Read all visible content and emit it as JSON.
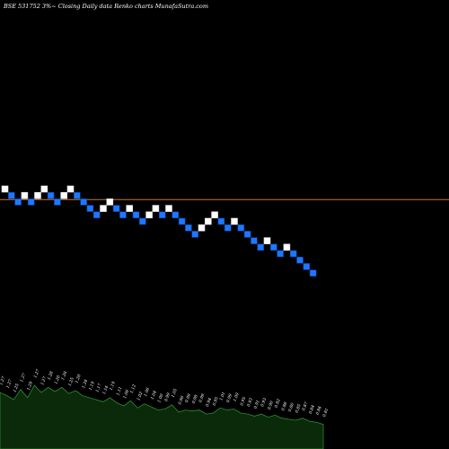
{
  "chart_data": {
    "type": "renko",
    "title": "BSE 531752  3%~  Closing Daily data  Renko  charts MunafaSutra.com",
    "reference_line_color": "#cc7733",
    "colors": {
      "up_brick": "#ffffff",
      "down_brick": "#1e78ff",
      "down_brick_border": "#0a3c9a",
      "volume_fill": "#0a2a0a",
      "volume_line": "#2e8b2e",
      "background": "#000000"
    },
    "bricks": [
      {
        "dir": "up",
        "level": 0
      },
      {
        "dir": "down",
        "level": -1
      },
      {
        "dir": "down",
        "level": -2
      },
      {
        "dir": "up",
        "level": -1
      },
      {
        "dir": "down",
        "level": -2
      },
      {
        "dir": "up",
        "level": -1
      },
      {
        "dir": "up",
        "level": 0
      },
      {
        "dir": "down",
        "level": -1
      },
      {
        "dir": "down",
        "level": -2
      },
      {
        "dir": "up",
        "level": -1
      },
      {
        "dir": "up",
        "level": 0
      },
      {
        "dir": "down",
        "level": -1
      },
      {
        "dir": "down",
        "level": -2
      },
      {
        "dir": "down",
        "level": -3
      },
      {
        "dir": "down",
        "level": -4
      },
      {
        "dir": "up",
        "level": -3
      },
      {
        "dir": "up",
        "level": -2
      },
      {
        "dir": "down",
        "level": -3
      },
      {
        "dir": "down",
        "level": -4
      },
      {
        "dir": "up",
        "level": -3
      },
      {
        "dir": "down",
        "level": -4
      },
      {
        "dir": "down",
        "level": -5
      },
      {
        "dir": "up",
        "level": -4
      },
      {
        "dir": "up",
        "level": -3
      },
      {
        "dir": "down",
        "level": -4
      },
      {
        "dir": "up",
        "level": -3
      },
      {
        "dir": "down",
        "level": -4
      },
      {
        "dir": "down",
        "level": -5
      },
      {
        "dir": "down",
        "level": -6
      },
      {
        "dir": "down",
        "level": -7
      },
      {
        "dir": "up",
        "level": -6
      },
      {
        "dir": "up",
        "level": -5
      },
      {
        "dir": "up",
        "level": -4
      },
      {
        "dir": "down",
        "level": -5
      },
      {
        "dir": "down",
        "level": -6
      },
      {
        "dir": "up",
        "level": -5
      },
      {
        "dir": "down",
        "level": -6
      },
      {
        "dir": "down",
        "level": -7
      },
      {
        "dir": "down",
        "level": -8
      },
      {
        "dir": "down",
        "level": -9
      },
      {
        "dir": "up",
        "level": -8
      },
      {
        "dir": "down",
        "level": -9
      },
      {
        "dir": "down",
        "level": -10
      },
      {
        "dir": "up",
        "level": -9
      },
      {
        "dir": "down",
        "level": -10
      },
      {
        "dir": "down",
        "level": -11
      },
      {
        "dir": "down",
        "level": -12
      },
      {
        "dir": "down",
        "level": -13
      }
    ],
    "reference_level": -1.5,
    "volume_labels": [
      "1.27",
      "1.27",
      "1.25",
      "1.27",
      "1.29",
      "1.27",
      "1.27",
      "1.28",
      "1.26",
      "1.28",
      "1.25",
      "1.26",
      "1.24",
      "1.19",
      "1.17",
      "1.14",
      "1.19",
      "1.11",
      "1.06",
      "1.12",
      "1.02",
      "1.06",
      "1.04",
      "1.00",
      "0.99",
      "1.05",
      "0.96",
      "0.99",
      "0.98",
      "0.99",
      "0.94",
      "0.95",
      "1.01",
      "0.99",
      "1.00",
      "0.95",
      "0.93",
      "0.91",
      "0.93",
      "0.90",
      "0.92",
      "0.88",
      "0.86",
      "0.85",
      "0.87",
      "0.84",
      "0.84",
      "0.81"
    ],
    "volume_values": [
      55,
      52,
      48,
      58,
      50,
      62,
      55,
      60,
      56,
      60,
      54,
      57,
      52,
      50,
      48,
      46,
      50,
      45,
      42,
      47,
      40,
      44,
      41,
      38,
      39,
      43,
      36,
      38,
      37,
      38,
      34,
      35,
      40,
      38,
      39,
      35,
      34,
      32,
      34,
      31,
      33,
      30,
      29,
      28,
      30,
      27,
      26,
      24
    ]
  }
}
